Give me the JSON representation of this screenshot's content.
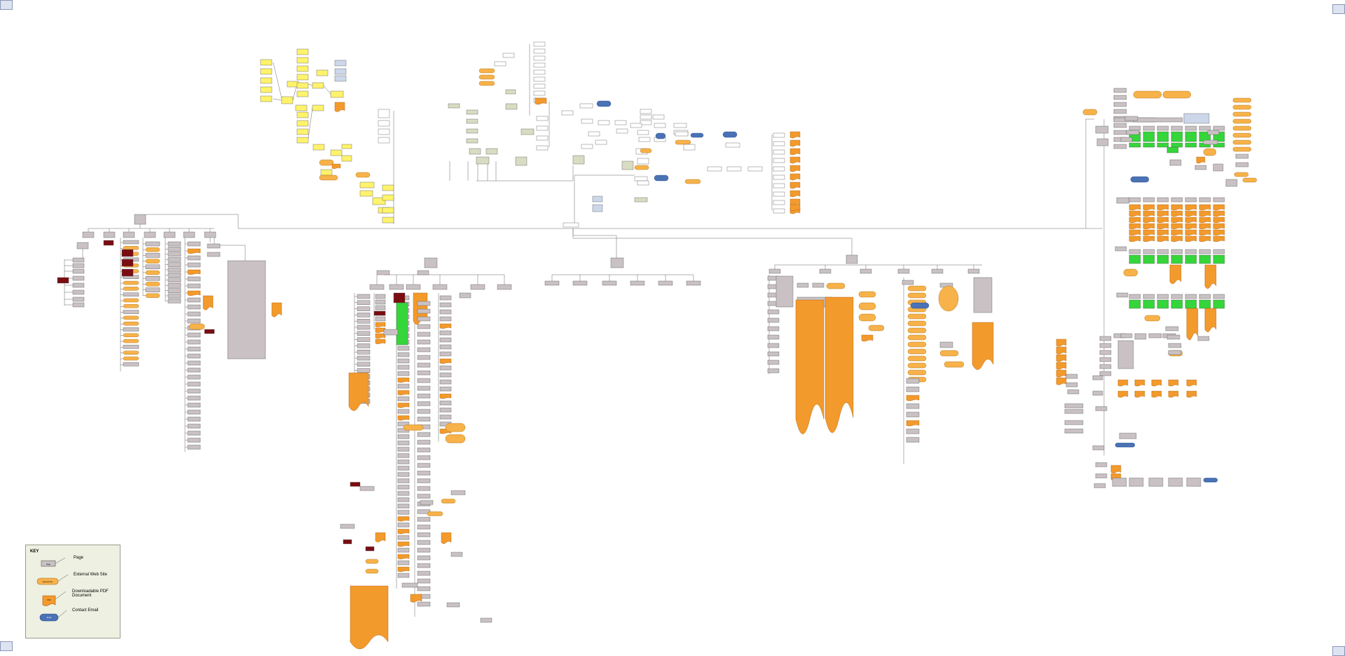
{
  "key": {
    "title": "KEY",
    "items": [
      {
        "shape": "page",
        "sample_text": "Page",
        "label": "Page",
        "color": "#c9c1c4"
      },
      {
        "shape": "external",
        "sample_text": "External Site",
        "label": "External Web Site",
        "color": "#f7b24a"
      },
      {
        "shape": "pdf",
        "sample_text": "PDF",
        "label": "Downloadable PDF Document",
        "color": "#f39a2c"
      },
      {
        "shape": "email",
        "sample_text": "Email",
        "label": "Contact Email",
        "color": "#4a72b5"
      }
    ]
  },
  "colors": {
    "page": "#c9c1c4",
    "page_border": "#555555",
    "external": "#f7b24a",
    "pdf": "#f39a2c",
    "email": "#4a72b5",
    "yellow": "#fff36b",
    "green": "#35d63a",
    "dark": "#7a0d12",
    "light_box": "#ffffff",
    "olive": "#d9dcc2",
    "blue_light": "#cdd7ea",
    "line": "#555555"
  }
}
